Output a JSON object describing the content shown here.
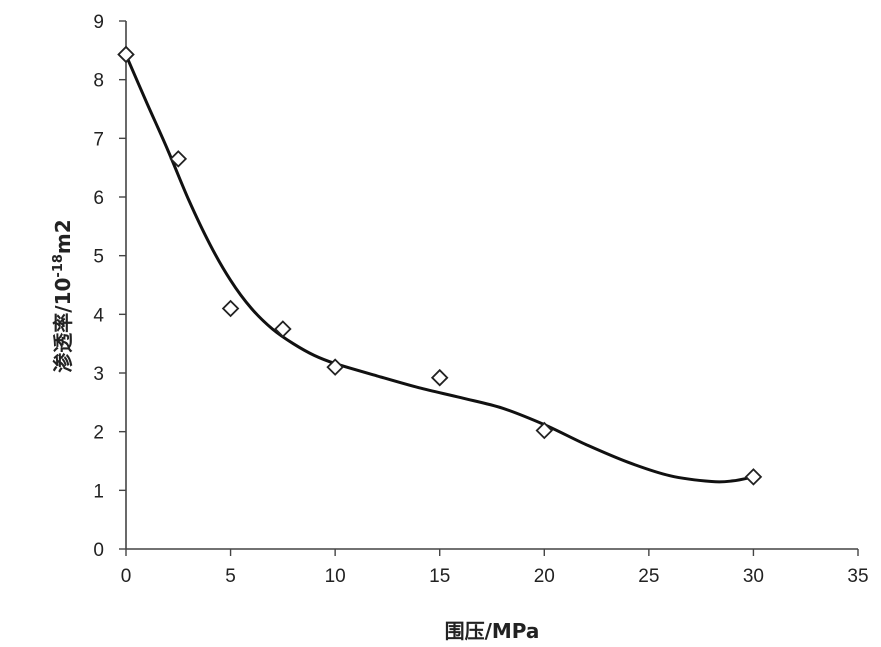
{
  "chart_data": {
    "type": "scatter",
    "x_axis": {
      "label": "围压/MPa",
      "range": [
        0,
        35
      ],
      "ticks": [
        0,
        5,
        10,
        15,
        20,
        25,
        30,
        35
      ],
      "tick_labels": [
        "0",
        "5",
        "10",
        "15",
        "20",
        "25",
        "30",
        "35"
      ]
    },
    "y_axis": {
      "label_main": "渗透率/10",
      "label_superscript": "-18",
      "label_unit": "m2",
      "range": [
        0,
        9
      ],
      "ticks": [
        0,
        1,
        2,
        3,
        4,
        5,
        6,
        7,
        8,
        9
      ],
      "tick_labels": [
        "0",
        "1",
        "2",
        "3",
        "4",
        "5",
        "6",
        "7",
        "8",
        "9"
      ]
    },
    "grid": false,
    "legend": "none",
    "series": [
      {
        "marker": "diamond-open",
        "x": [
          0,
          2.5,
          5,
          7.5,
          10,
          15,
          20,
          30
        ],
        "y": [
          8.43,
          6.65,
          4.1,
          3.75,
          3.1,
          2.92,
          2.02,
          1.23
        ]
      }
    ],
    "trend_line": {
      "style": "smooth",
      "x": [
        0,
        1,
        2,
        3,
        4,
        5,
        6,
        7,
        8,
        9,
        10,
        12,
        14,
        16,
        18,
        20,
        22,
        24,
        26,
        28,
        29,
        30
      ],
      "y": [
        8.42,
        7.6,
        6.8,
        5.95,
        5.2,
        4.58,
        4.1,
        3.75,
        3.5,
        3.3,
        3.16,
        2.95,
        2.75,
        2.58,
        2.4,
        2.12,
        1.78,
        1.48,
        1.25,
        1.15,
        1.16,
        1.23
      ]
    },
    "colors": {
      "marker_stroke": "#222222",
      "line": "#111111",
      "axis": "#444444"
    }
  }
}
